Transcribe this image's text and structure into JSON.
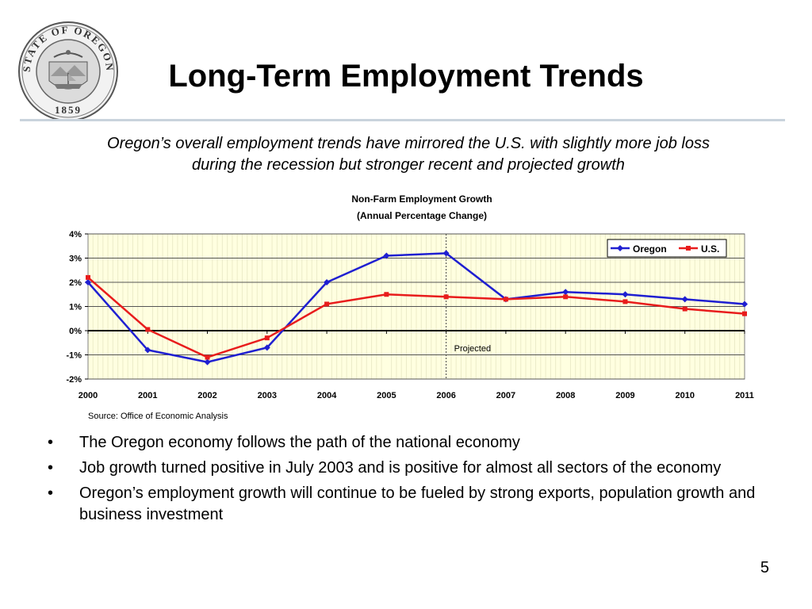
{
  "slide": {
    "title": "Long-Term Employment Trends",
    "subtitle_line1": "Oregon’s overall employment trends have mirrored the U.S. with slightly more job loss",
    "subtitle_line2": "during the recession but stronger recent and projected growth",
    "page_number": "5",
    "seal": {
      "top_text": "STATE OF OREGON",
      "year": "1859"
    }
  },
  "bullets": [
    "The Oregon economy follows the path of the national economy",
    "Job growth turned positive in July 2003 and is positive for almost all sectors of the economy",
    "Oregon’s employment growth will continue to be fueled by strong exports, population growth and business investment"
  ],
  "chart_data": {
    "type": "line",
    "title": "Non-Farm Employment Growth",
    "subtitle": "(Annual Percentage Change)",
    "x": [
      "2000",
      "2001",
      "2002",
      "2003",
      "2004",
      "2005",
      "2006",
      "2007",
      "2008",
      "2009",
      "2010",
      "2011"
    ],
    "series": [
      {
        "name": "Oregon",
        "color": "#1f1fd1",
        "values": [
          2.0,
          -0.8,
          -1.3,
          -0.7,
          2.0,
          3.1,
          3.2,
          1.3,
          1.6,
          1.5,
          1.3,
          1.1
        ]
      },
      {
        "name": "U.S.",
        "color": "#e81c1c",
        "values": [
          2.2,
          0.05,
          -1.1,
          -0.3,
          1.1,
          1.5,
          1.4,
          1.3,
          1.4,
          1.2,
          0.9,
          0.7
        ]
      }
    ],
    "ylim": [
      -2,
      4
    ],
    "yticks": [
      "4%",
      "3%",
      "2%",
      "1%",
      "0%",
      "-1%",
      "-2%"
    ],
    "grid": true,
    "legend_position": "top-right",
    "annotation": {
      "text": "Projected",
      "after_x": "2006"
    },
    "source": "Source: Office of Economic Analysis",
    "plot_background": "#ffffe0"
  }
}
